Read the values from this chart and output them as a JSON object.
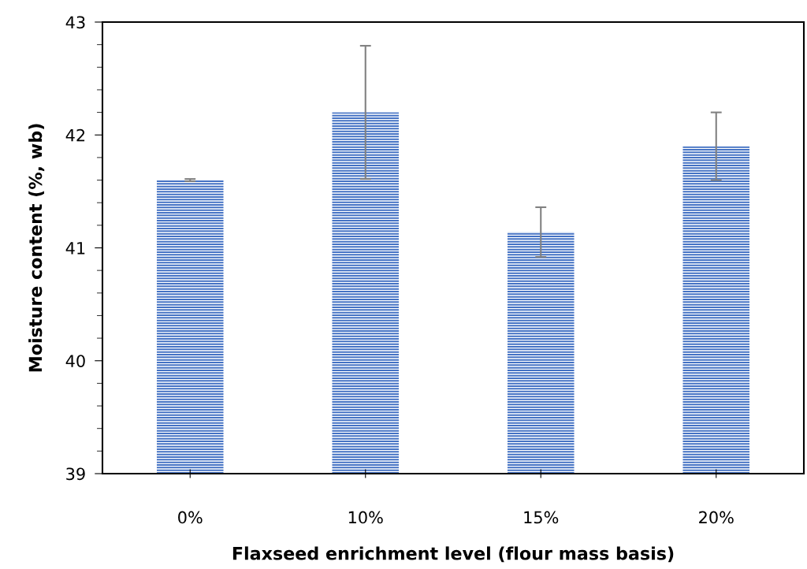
{
  "chart_data": {
    "type": "bar",
    "xlabel": "Flaxseed enrichment level (flour mass basis)",
    "ylabel": "Moisture content (%, wb)",
    "categories": [
      "0%",
      "10%",
      "15%",
      "20%"
    ],
    "values": [
      41.6,
      42.2,
      41.14,
      41.9
    ],
    "errors": [
      0.01,
      0.59,
      0.22,
      0.3
    ],
    "color": "#4472c4",
    "ylim": [
      39,
      43
    ],
    "yticks": [
      39,
      40,
      41,
      42,
      43
    ],
    "grid": false
  }
}
